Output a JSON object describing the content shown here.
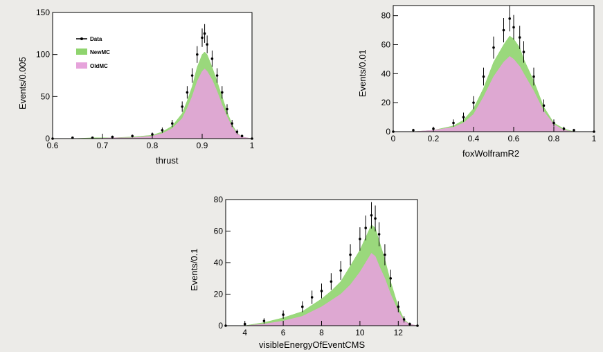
{
  "chart_data": [
    {
      "type": "histogram",
      "xlabel": "thrust",
      "ylabel": "Events/0.005",
      "xlim": [
        0.6,
        1.0
      ],
      "ylim": [
        0,
        150
      ],
      "xticks": [
        0.6,
        0.7,
        0.8,
        0.9,
        1
      ],
      "xtick_labels": [
        "0.6",
        "0.7",
        "0.8",
        "0.9",
        "1"
      ],
      "yticks": [
        0,
        50,
        100,
        150
      ],
      "legend": [
        "Data",
        "NewMC",
        "OldMC"
      ],
      "legend_position": "top-left",
      "x": [
        0.6,
        0.64,
        0.68,
        0.72,
        0.76,
        0.8,
        0.82,
        0.84,
        0.86,
        0.87,
        0.88,
        0.89,
        0.9,
        0.905,
        0.91,
        0.92,
        0.93,
        0.94,
        0.95,
        0.96,
        0.97,
        0.98,
        1.0
      ],
      "series": [
        {
          "name": "Data",
          "values": [
            0,
            1,
            1,
            2,
            3,
            5,
            10,
            18,
            38,
            55,
            75,
            100,
            120,
            125,
            112,
            95,
            75,
            55,
            35,
            18,
            8,
            3,
            0
          ]
        },
        {
          "name": "NewMC",
          "values": [
            0,
            0,
            1,
            1,
            2,
            4,
            8,
            15,
            30,
            45,
            62,
            85,
            100,
            103,
            100,
            85,
            68,
            50,
            32,
            17,
            7,
            2,
            0
          ]
        },
        {
          "name": "OldMC",
          "values": [
            0,
            0,
            0,
            1,
            1,
            3,
            6,
            12,
            24,
            36,
            50,
            68,
            80,
            83,
            80,
            70,
            56,
            40,
            26,
            14,
            6,
            2,
            0
          ]
        }
      ]
    },
    {
      "type": "histogram",
      "xlabel": "foxWolframR2",
      "ylabel": "Events/0.01",
      "xlim": [
        0,
        1
      ],
      "ylim": [
        0,
        87
      ],
      "xticks": [
        0,
        0.2,
        0.4,
        0.6,
        0.8,
        1
      ],
      "xtick_labels": [
        "0",
        "0.2",
        "0.4",
        "0.6",
        "0.8",
        "1"
      ],
      "yticks": [
        0,
        20,
        40,
        60,
        80
      ],
      "x": [
        0,
        0.1,
        0.2,
        0.3,
        0.35,
        0.4,
        0.45,
        0.5,
        0.55,
        0.58,
        0.6,
        0.63,
        0.65,
        0.7,
        0.75,
        0.8,
        0.85,
        0.9,
        1.0
      ],
      "series": [
        {
          "name": "Data",
          "values": [
            0,
            1,
            2,
            6,
            10,
            20,
            38,
            58,
            70,
            78,
            72,
            65,
            55,
            38,
            18,
            6,
            2,
            1,
            0
          ]
        },
        {
          "name": "NewMC",
          "values": [
            0,
            0,
            1,
            4,
            8,
            16,
            30,
            48,
            60,
            66,
            64,
            58,
            50,
            35,
            17,
            6,
            2,
            0,
            0
          ]
        },
        {
          "name": "OldMC",
          "values": [
            0,
            0,
            1,
            3,
            6,
            12,
            24,
            38,
            48,
            52,
            50,
            45,
            40,
            28,
            14,
            5,
            1,
            0,
            0
          ]
        }
      ]
    },
    {
      "type": "histogram",
      "xlabel": "visibleEnergyOfEventCMS",
      "ylabel": "Events/0.1",
      "xlim": [
        3,
        13
      ],
      "ylim": [
        0,
        80
      ],
      "xticks": [
        4,
        6,
        8,
        10,
        12
      ],
      "xtick_labels": [
        "4",
        "6",
        "8",
        "10",
        "12"
      ],
      "yticks": [
        0,
        20,
        40,
        60,
        80
      ],
      "x": [
        3,
        4,
        5,
        6,
        7,
        7.5,
        8,
        8.5,
        9,
        9.5,
        10,
        10.3,
        10.6,
        10.8,
        11,
        11.3,
        11.6,
        12,
        12.3,
        12.6,
        13
      ],
      "series": [
        {
          "name": "Data",
          "values": [
            0,
            1,
            3,
            7,
            12,
            18,
            22,
            28,
            35,
            45,
            55,
            62,
            70,
            68,
            58,
            45,
            30,
            12,
            4,
            1,
            0
          ]
        },
        {
          "name": "NewMC",
          "values": [
            0,
            0,
            2,
            5,
            9,
            13,
            17,
            22,
            28,
            38,
            48,
            56,
            64,
            62,
            54,
            42,
            28,
            12,
            4,
            1,
            0
          ]
        },
        {
          "name": "OldMC",
          "values": [
            0,
            0,
            1,
            3,
            6,
            9,
            12,
            16,
            20,
            26,
            34,
            40,
            46,
            44,
            38,
            30,
            20,
            9,
            3,
            1,
            0
          ]
        }
      ]
    }
  ],
  "colors": {
    "data": "#000000",
    "newmc": "#8fd46e",
    "oldmc": "#e6a3db",
    "background": "#ecebe8",
    "plot_bg": "#ffffff"
  }
}
